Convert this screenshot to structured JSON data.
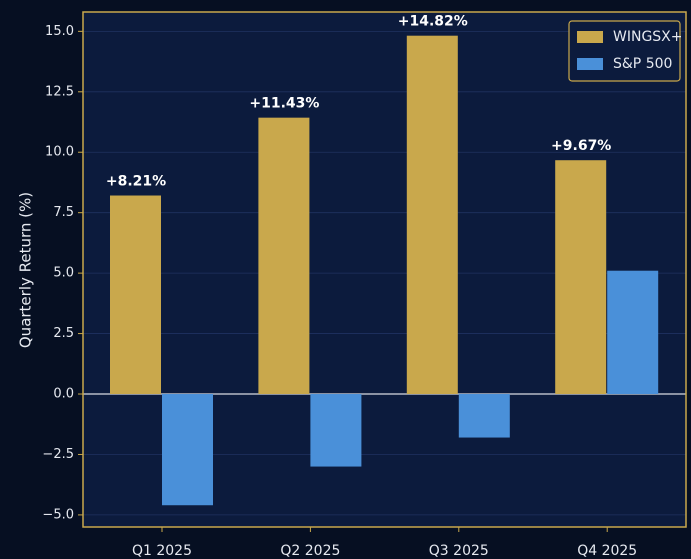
{
  "chart_data": {
    "type": "bar",
    "ylabel": "Quarterly Return (%)",
    "categories": [
      "Q1 2025",
      "Q2 2025",
      "Q3 2025",
      "Q4 2025"
    ],
    "series": [
      {
        "name": "WINGSX+",
        "color": "#c9a84c",
        "values": [
          8.21,
          11.43,
          14.82,
          9.67
        ],
        "value_labels": [
          "+8.21%",
          "+11.43%",
          "+14.82%",
          "+9.67%"
        ]
      },
      {
        "name": "S&P 500",
        "color": "#4a90d9",
        "values": [
          -4.6,
          -3.0,
          -1.8,
          5.1
        ]
      }
    ],
    "ylim": [
      -5.5,
      15.8
    ],
    "yticks": [
      {
        "value": -5,
        "label": "−5.0"
      },
      {
        "value": -2.5,
        "label": "−2.5"
      },
      {
        "value": 0,
        "label": "0.0"
      },
      {
        "value": 2.5,
        "label": "2.5"
      },
      {
        "value": 5,
        "label": "5.0"
      },
      {
        "value": 7.5,
        "label": "7.5"
      },
      {
        "value": 10,
        "label": "10.0"
      },
      {
        "value": 12.5,
        "label": "12.5"
      },
      {
        "value": 15,
        "label": "15.0"
      }
    ],
    "grid": true,
    "legend": "upper right"
  }
}
